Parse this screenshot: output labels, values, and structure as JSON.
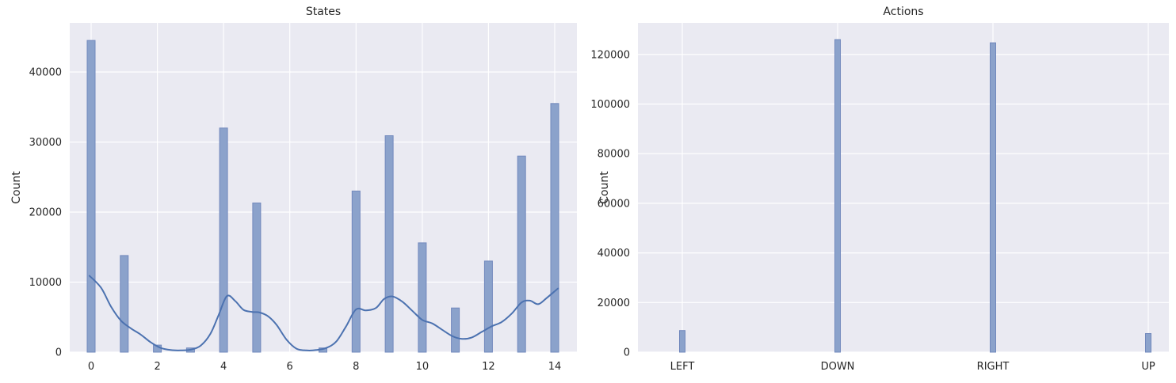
{
  "figure": {
    "background": "#ffffff"
  },
  "colors": {
    "bar_fill": "#8ba2cb",
    "bar_edge": "#7289bd",
    "kde_line": "#4c72b0",
    "axes_background": "#eaeaf2",
    "gridline": "#ffffff",
    "text": "#262626"
  },
  "chart_data": [
    {
      "type": "bar",
      "subtype": "histogram_with_kde",
      "title": "States",
      "xlabel": "",
      "ylabel": "Count",
      "categories": [
        0,
        1,
        2,
        3,
        4,
        5,
        6,
        7,
        8,
        9,
        10,
        11,
        12,
        13,
        14
      ],
      "values": [
        44500,
        13800,
        1000,
        600,
        32000,
        21300,
        0,
        600,
        23000,
        30900,
        15600,
        6300,
        13000,
        28000,
        35500
      ],
      "xticks": [
        0,
        2,
        4,
        6,
        8,
        10,
        12,
        14
      ],
      "yticks": [
        0,
        10000,
        20000,
        30000,
        40000
      ],
      "xlim": [
        -0.65,
        14.65
      ],
      "ylim": [
        0,
        47000
      ],
      "grid": true,
      "legend": false,
      "kde": {
        "x": [
          -0.05,
          0.3,
          0.6,
          0.9,
          1.2,
          1.5,
          1.8,
          2.1,
          2.4,
          2.7,
          3.0,
          3.3,
          3.6,
          3.85,
          4.1,
          4.35,
          4.6,
          4.85,
          5.1,
          5.35,
          5.6,
          5.9,
          6.2,
          6.5,
          6.8,
          7.1,
          7.4,
          7.7,
          8.0,
          8.3,
          8.6,
          8.85,
          9.1,
          9.4,
          9.7,
          10.0,
          10.3,
          10.6,
          10.9,
          11.2,
          11.5,
          11.8,
          12.1,
          12.4,
          12.7,
          13.0,
          13.25,
          13.5,
          13.75,
          14.1
        ],
        "y": [
          10900,
          9200,
          6500,
          4500,
          3400,
          2500,
          1400,
          600,
          300,
          250,
          350,
          900,
          2600,
          5300,
          8000,
          7300,
          6050,
          5750,
          5650,
          5100,
          3900,
          1800,
          500,
          250,
          300,
          600,
          1500,
          3700,
          6100,
          5950,
          6300,
          7600,
          7950,
          7200,
          5900,
          4600,
          4100,
          3200,
          2300,
          1900,
          2100,
          2900,
          3700,
          4300,
          5500,
          7100,
          7350,
          6850,
          7700,
          9100
        ]
      }
    },
    {
      "type": "bar",
      "subtype": "histogram",
      "title": "Actions",
      "xlabel": "",
      "ylabel": "Count",
      "categories": [
        "LEFT",
        "DOWN",
        "RIGHT",
        "UP"
      ],
      "values": [
        8700,
        126000,
        124700,
        7500
      ],
      "yticks": [
        0,
        20000,
        40000,
        60000,
        80000,
        100000,
        120000
      ],
      "ylim": [
        0,
        132700
      ],
      "grid": true,
      "legend": false
    }
  ]
}
